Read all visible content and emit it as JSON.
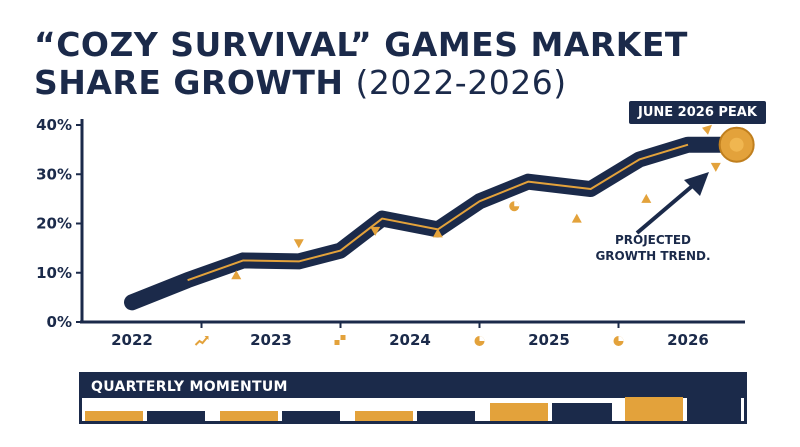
{
  "title": {
    "line1": "“COZY SURVIVAL” GAMES MARKET",
    "line2": "SHARE GROWTH",
    "line2_light": "(2022-2026)"
  },
  "chart_data": {
    "type": "line",
    "x_ticks": [
      "2022",
      "2023",
      "2024",
      "2025",
      "2026"
    ],
    "y_ticks": [
      "0%",
      "10%",
      "20%",
      "30%",
      "40%"
    ],
    "ylim": [
      0,
      40
    ],
    "xlim": [
      2022,
      2026.6
    ],
    "grid": false,
    "series": [
      {
        "x": [
          2022,
          2022.4,
          2022.8,
          2023.2,
          2023.5,
          2023.8,
          2024.2,
          2024.5,
          2024.85,
          2025.3,
          2025.65,
          2026.0,
          2026.35
        ],
        "values": [
          4.0,
          8.5,
          12.5,
          12.3,
          14.5,
          21.0,
          18.8,
          24.5,
          28.5,
          27.0,
          33.0,
          36.0,
          36.0
        ]
      }
    ],
    "scatter_markers": [
      {
        "x": 2022.75,
        "y": 9.5,
        "shape": "triangle-up"
      },
      {
        "x": 2023.2,
        "y": 16,
        "shape": "triangle-down"
      },
      {
        "x": 2023.75,
        "y": 18.5,
        "shape": "triangle-down"
      },
      {
        "x": 2024.2,
        "y": 18,
        "shape": "triangle-up"
      },
      {
        "x": 2024.75,
        "y": 23.5,
        "shape": "pie"
      },
      {
        "x": 2025.2,
        "y": 21,
        "shape": "triangle-up"
      },
      {
        "x": 2025.7,
        "y": 25,
        "shape": "triangle-up"
      },
      {
        "x": 2026.2,
        "y": 31.5,
        "shape": "triangle-down"
      }
    ],
    "x_minor_icons": [
      {
        "x": 2022.5,
        "icon": "trend-up-icon"
      },
      {
        "x": 2023.5,
        "icon": "bar-chart-icon"
      },
      {
        "x": 2024.5,
        "icon": "pie-chart-icon"
      },
      {
        "x": 2025.5,
        "icon": "pie-chart-icon"
      }
    ],
    "annotations": {
      "peak_label": "JUNE 2026 PEAK",
      "peak": {
        "x": 2026.35,
        "y": 36
      },
      "trend_label": "PROJECTED GROWTH TREND."
    },
    "momentum": {
      "title": "QUARTERLY MOMENTUM",
      "bars": [
        {
          "color": "gold",
          "level": 0.4
        },
        {
          "color": "navy",
          "level": 0.4
        },
        {
          "color": "gold",
          "level": 0.4
        },
        {
          "color": "navy",
          "level": 0.4
        },
        {
          "color": "gold",
          "level": 0.4
        },
        {
          "color": "navy",
          "level": 0.4
        },
        {
          "color": "gold",
          "level": 0.75
        },
        {
          "color": "navy",
          "level": 0.75
        },
        {
          "color": "gold",
          "level": 1.0
        },
        {
          "color": "navy",
          "level": 1.0
        }
      ]
    },
    "colors": {
      "navy": "#1b2a4a",
      "gold": "#e3a23b"
    }
  }
}
